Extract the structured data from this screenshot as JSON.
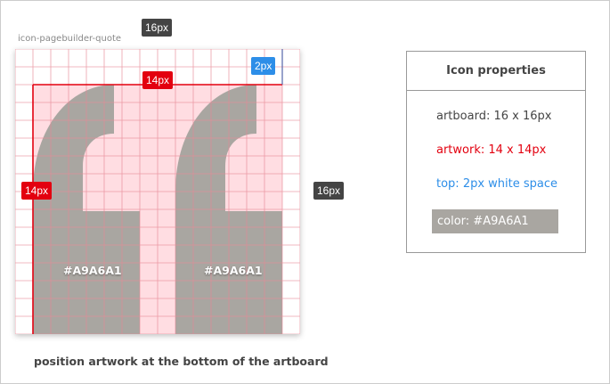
{
  "artboard_title": "icon-pagebuilder-quote",
  "dimensions": {
    "width_label": "16px",
    "height_label": "16px",
    "artwork_width_label": "14px",
    "artwork_height_label": "14px",
    "top_space_label": "2px"
  },
  "glyph_labels": [
    "#A9A6A1",
    "#A9A6A1"
  ],
  "colors": {
    "icon": "#A9A6A1",
    "artwork": "#e3000f",
    "top": "#2d8ee8",
    "artwork_fill": "#ffdde2"
  },
  "panel": {
    "title": "Icon properties",
    "artboard": "artboard: 16 x 16px",
    "artwork": "artwork: 14 x 14px",
    "top": "top: 2px white space",
    "color": "color: #A9A6A1"
  },
  "caption": "position artwork at the bottom of the artboard"
}
